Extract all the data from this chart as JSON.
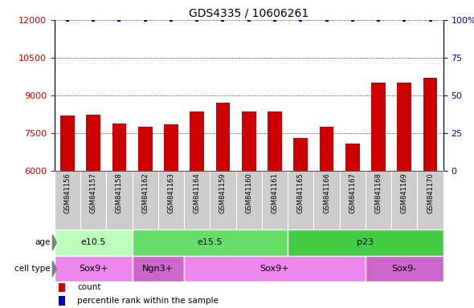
{
  "title": "GDS4335 / 10606261",
  "samples": [
    "GSM841156",
    "GSM841157",
    "GSM841158",
    "GSM841162",
    "GSM841163",
    "GSM841164",
    "GSM841159",
    "GSM841160",
    "GSM841161",
    "GSM841165",
    "GSM841166",
    "GSM841167",
    "GSM841168",
    "GSM841169",
    "GSM841170"
  ],
  "counts": [
    8200,
    8250,
    7900,
    7750,
    7850,
    8350,
    8700,
    8350,
    8350,
    7300,
    7750,
    7100,
    9500,
    9500,
    9700
  ],
  "percentile_ranks": [
    100,
    100,
    100,
    100,
    100,
    100,
    100,
    100,
    100,
    100,
    100,
    100,
    100,
    100,
    100
  ],
  "ylim_left": [
    6000,
    12000
  ],
  "ylim_right": [
    0,
    100
  ],
  "yticks_left": [
    6000,
    7500,
    9000,
    10500,
    12000
  ],
  "ytick_labels_left": [
    "6000",
    "7500",
    "9000",
    "10500",
    "12000"
  ],
  "yticks_right": [
    0,
    25,
    50,
    75,
    100
  ],
  "ytick_labels_right": [
    "0",
    "25",
    "50",
    "75",
    "100%"
  ],
  "bar_color": "#cc0000",
  "dot_color": "#0000bb",
  "age_groups": [
    {
      "label": "e10.5",
      "start": 0,
      "end": 3,
      "color": "#bbffbb"
    },
    {
      "label": "e15.5",
      "start": 3,
      "end": 9,
      "color": "#66dd66"
    },
    {
      "label": "p23",
      "start": 9,
      "end": 15,
      "color": "#44cc44"
    }
  ],
  "cell_type_groups": [
    {
      "label": "Sox9+",
      "start": 0,
      "end": 3,
      "color": "#ee88ee"
    },
    {
      "label": "Ngn3+",
      "start": 3,
      "end": 5,
      "color": "#cc66cc"
    },
    {
      "label": "Sox9+",
      "start": 5,
      "end": 12,
      "color": "#ee88ee"
    },
    {
      "label": "Sox9-",
      "start": 12,
      "end": 15,
      "color": "#cc66cc"
    }
  ],
  "tick_label_color_left": "#cc0000",
  "tick_label_color_right": "#0000bb",
  "background_color": "#ffffff",
  "xticklabel_bg": "#cccccc",
  "legend_count_color": "#cc0000",
  "legend_dot_color": "#0000bb"
}
